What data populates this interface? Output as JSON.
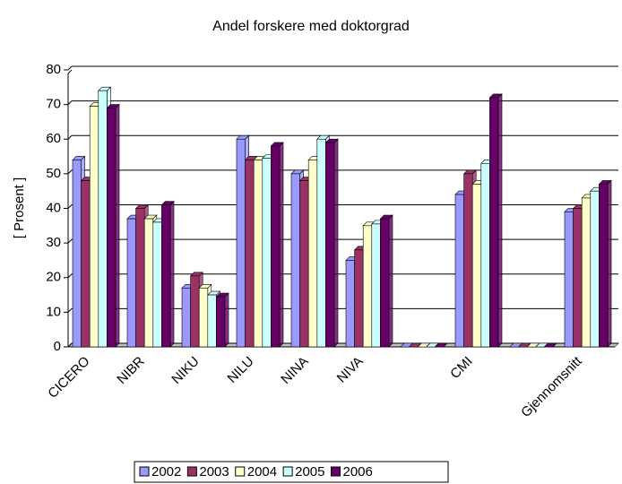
{
  "chart_data": {
    "type": "bar",
    "title": "Andel forskere med doktorgrad",
    "y_label": "[ Prosent ]",
    "categories": [
      "CICERO",
      "NIBR",
      "NIKU",
      "NILU",
      "NINA",
      "NIVA",
      null,
      "CMI",
      null,
      "Gjennomsnitt"
    ],
    "series": [
      {
        "name": "2002",
        "color": "#9999ff",
        "values": [
          54,
          37,
          17,
          60,
          50,
          25,
          0,
          44,
          0,
          39
        ]
      },
      {
        "name": "2003",
        "color": "#993366",
        "values": [
          48,
          40,
          20.5,
          54,
          48,
          28,
          0,
          50,
          0,
          40
        ]
      },
      {
        "name": "2004",
        "color": "#ffffcc",
        "values": [
          69.5,
          37,
          17,
          54,
          54,
          35,
          0,
          47,
          0,
          43
        ]
      },
      {
        "name": "2005",
        "color": "#ccffff",
        "values": [
          74,
          36,
          15,
          54.5,
          60,
          35.5,
          0,
          53,
          0,
          45
        ]
      },
      {
        "name": "2006",
        "color": "#660066",
        "values": [
          69,
          41,
          14.5,
          58,
          59,
          37,
          0,
          72,
          0,
          47
        ]
      }
    ],
    "ylim": [
      0,
      80
    ],
    "yticks": [
      0,
      10,
      20,
      30,
      40,
      50,
      60,
      70,
      80
    ],
    "grid": true
  }
}
